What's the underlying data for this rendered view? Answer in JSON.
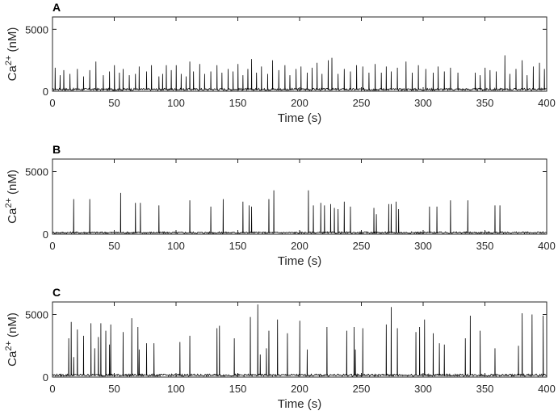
{
  "chart_data": [
    {
      "type": "line",
      "panel_label": "A",
      "xlabel": "Time (s)",
      "ylabel": "Ca2+ (nM)",
      "xlim": [
        0,
        400
      ],
      "ylim": [
        0,
        6000
      ],
      "xticks": [
        0,
        50,
        100,
        150,
        200,
        250,
        300,
        350,
        400
      ],
      "yticks": [
        0,
        5000
      ],
      "grid": false,
      "baseline": 150,
      "series": [
        {
          "color": "#000000",
          "spikes": [
            {
              "t": 2,
              "peak": 1900
            },
            {
              "t": 6,
              "peak": 1300
            },
            {
              "t": 9,
              "peak": 1700
            },
            {
              "t": 14,
              "peak": 1400
            },
            {
              "t": 20,
              "peak": 1800
            },
            {
              "t": 25,
              "peak": 1200
            },
            {
              "t": 30,
              "peak": 1700
            },
            {
              "t": 35,
              "peak": 2400
            },
            {
              "t": 41,
              "peak": 1300
            },
            {
              "t": 46,
              "peak": 1600
            },
            {
              "t": 50,
              "peak": 2100
            },
            {
              "t": 54,
              "peak": 1500
            },
            {
              "t": 57,
              "peak": 1800
            },
            {
              "t": 62,
              "peak": 1300
            },
            {
              "t": 67,
              "peak": 1400
            },
            {
              "t": 70,
              "peak": 2000
            },
            {
              "t": 76,
              "peak": 1600
            },
            {
              "t": 80,
              "peak": 2100
            },
            {
              "t": 86,
              "peak": 1200
            },
            {
              "t": 89,
              "peak": 1400
            },
            {
              "t": 92,
              "peak": 2100
            },
            {
              "t": 96,
              "peak": 1700
            },
            {
              "t": 100,
              "peak": 2100
            },
            {
              "t": 104,
              "peak": 1400
            },
            {
              "t": 108,
              "peak": 1200
            },
            {
              "t": 111,
              "peak": 2400
            },
            {
              "t": 114,
              "peak": 1600
            },
            {
              "t": 119,
              "peak": 2200
            },
            {
              "t": 123,
              "peak": 1400
            },
            {
              "t": 128,
              "peak": 1600
            },
            {
              "t": 133,
              "peak": 2100
            },
            {
              "t": 137,
              "peak": 1500
            },
            {
              "t": 142,
              "peak": 1800
            },
            {
              "t": 146,
              "peak": 1600
            },
            {
              "t": 150,
              "peak": 2200
            },
            {
              "t": 154,
              "peak": 1300
            },
            {
              "t": 158,
              "peak": 1800
            },
            {
              "t": 161,
              "peak": 2600
            },
            {
              "t": 165,
              "peak": 1500
            },
            {
              "t": 169,
              "peak": 2000
            },
            {
              "t": 174,
              "peak": 1400
            },
            {
              "t": 178,
              "peak": 2500
            },
            {
              "t": 183,
              "peak": 1700
            },
            {
              "t": 188,
              "peak": 2100
            },
            {
              "t": 192,
              "peak": 1300
            },
            {
              "t": 197,
              "peak": 1800
            },
            {
              "t": 201,
              "peak": 2000
            },
            {
              "t": 206,
              "peak": 1500
            },
            {
              "t": 210,
              "peak": 1900
            },
            {
              "t": 214,
              "peak": 2300
            },
            {
              "t": 218,
              "peak": 1400
            },
            {
              "t": 223,
              "peak": 2500
            },
            {
              "t": 226,
              "peak": 2700
            },
            {
              "t": 231,
              "peak": 1400
            },
            {
              "t": 236,
              "peak": 1800
            },
            {
              "t": 241,
              "peak": 1600
            },
            {
              "t": 246,
              "peak": 2100
            },
            {
              "t": 251,
              "peak": 2000
            },
            {
              "t": 256,
              "peak": 1500
            },
            {
              "t": 261,
              "peak": 2200
            },
            {
              "t": 266,
              "peak": 1500
            },
            {
              "t": 270,
              "peak": 2000
            },
            {
              "t": 274,
              "peak": 1600
            },
            {
              "t": 279,
              "peak": 1900
            },
            {
              "t": 286,
              "peak": 2400
            },
            {
              "t": 291,
              "peak": 1500
            },
            {
              "t": 296,
              "peak": 2100
            },
            {
              "t": 302,
              "peak": 1800
            },
            {
              "t": 308,
              "peak": 1500
            },
            {
              "t": 312,
              "peak": 2000
            },
            {
              "t": 317,
              "peak": 1600
            },
            {
              "t": 322,
              "peak": 1900
            },
            {
              "t": 328,
              "peak": 1500
            },
            {
              "t": 342,
              "peak": 1500
            },
            {
              "t": 346,
              "peak": 1300
            },
            {
              "t": 350,
              "peak": 1900
            },
            {
              "t": 354,
              "peak": 1700
            },
            {
              "t": 359,
              "peak": 1600
            },
            {
              "t": 366,
              "peak": 2900
            },
            {
              "t": 370,
              "peak": 1400
            },
            {
              "t": 375,
              "peak": 1800
            },
            {
              "t": 380,
              "peak": 2500
            },
            {
              "t": 384,
              "peak": 1300
            },
            {
              "t": 389,
              "peak": 2000
            },
            {
              "t": 394,
              "peak": 2300
            },
            {
              "t": 398,
              "peak": 1800
            }
          ]
        }
      ]
    },
    {
      "type": "line",
      "panel_label": "B",
      "xlabel": "Time (s)",
      "ylabel": "Ca2+ (nM)",
      "xlim": [
        0,
        400
      ],
      "ylim": [
        0,
        6000
      ],
      "xticks": [
        0,
        50,
        100,
        150,
        200,
        250,
        300,
        350,
        400
      ],
      "yticks": [
        0,
        5000
      ],
      "grid": false,
      "baseline": 120,
      "series": [
        {
          "color": "#000000",
          "spikes": [
            {
              "t": 17,
              "peak": 2800
            },
            {
              "t": 30,
              "peak": 2800
            },
            {
              "t": 55,
              "peak": 3300
            },
            {
              "t": 67,
              "peak": 2500
            },
            {
              "t": 71,
              "peak": 2500
            },
            {
              "t": 86,
              "peak": 2300
            },
            {
              "t": 111,
              "peak": 2700
            },
            {
              "t": 128,
              "peak": 2200
            },
            {
              "t": 138,
              "peak": 2800
            },
            {
              "t": 154,
              "peak": 2600
            },
            {
              "t": 159,
              "peak": 2300
            },
            {
              "t": 161,
              "peak": 2200
            },
            {
              "t": 175,
              "peak": 2800
            },
            {
              "t": 179,
              "peak": 3500
            },
            {
              "t": 207,
              "peak": 3500
            },
            {
              "t": 211,
              "peak": 2300
            },
            {
              "t": 217,
              "peak": 2500
            },
            {
              "t": 220,
              "peak": 2300
            },
            {
              "t": 225,
              "peak": 2400
            },
            {
              "t": 228,
              "peak": 2100
            },
            {
              "t": 231,
              "peak": 2000
            },
            {
              "t": 236,
              "peak": 2600
            },
            {
              "t": 241,
              "peak": 2200
            },
            {
              "t": 260,
              "peak": 2100
            },
            {
              "t": 262,
              "peak": 1600
            },
            {
              "t": 272,
              "peak": 2400
            },
            {
              "t": 274,
              "peak": 2400
            },
            {
              "t": 278,
              "peak": 2600
            },
            {
              "t": 280,
              "peak": 2000
            },
            {
              "t": 305,
              "peak": 2200
            },
            {
              "t": 311,
              "peak": 2200
            },
            {
              "t": 322,
              "peak": 2700
            },
            {
              "t": 336,
              "peak": 2700
            },
            {
              "t": 358,
              "peak": 2300
            },
            {
              "t": 362,
              "peak": 2300
            }
          ]
        }
      ]
    },
    {
      "type": "line",
      "panel_label": "C",
      "xlabel": "Time (s)",
      "ylabel": "Ca2+ (nM)",
      "xlim": [
        0,
        400
      ],
      "ylim": [
        0,
        6000
      ],
      "xticks": [
        0,
        50,
        100,
        150,
        200,
        250,
        300,
        350,
        400
      ],
      "yticks": [
        0,
        5000
      ],
      "grid": false,
      "baseline": 150,
      "series": [
        {
          "color": "#000000",
          "spikes": [
            {
              "t": 13,
              "peak": 3100
            },
            {
              "t": 15,
              "peak": 4400
            },
            {
              "t": 17,
              "peak": 1600
            },
            {
              "t": 20,
              "peak": 3800
            },
            {
              "t": 25,
              "peak": 3300
            },
            {
              "t": 31,
              "peak": 4300
            },
            {
              "t": 34,
              "peak": 2300
            },
            {
              "t": 37,
              "peak": 3200
            },
            {
              "t": 39,
              "peak": 4300
            },
            {
              "t": 43,
              "peak": 3700
            },
            {
              "t": 46,
              "peak": 2600
            },
            {
              "t": 47,
              "peak": 4200
            },
            {
              "t": 57,
              "peak": 3600
            },
            {
              "t": 64,
              "peak": 4700
            },
            {
              "t": 69,
              "peak": 4000
            },
            {
              "t": 70,
              "peak": 2200
            },
            {
              "t": 76,
              "peak": 2700
            },
            {
              "t": 82,
              "peak": 2700
            },
            {
              "t": 103,
              "peak": 2800
            },
            {
              "t": 111,
              "peak": 3300
            },
            {
              "t": 133,
              "peak": 3900
            },
            {
              "t": 135,
              "peak": 4100
            },
            {
              "t": 147,
              "peak": 3100
            },
            {
              "t": 160,
              "peak": 4800
            },
            {
              "t": 166,
              "peak": 5800
            },
            {
              "t": 168,
              "peak": 1800
            },
            {
              "t": 173,
              "peak": 2300
            },
            {
              "t": 175,
              "peak": 3700
            },
            {
              "t": 182,
              "peak": 4600
            },
            {
              "t": 190,
              "peak": 3500
            },
            {
              "t": 200,
              "peak": 4500
            },
            {
              "t": 206,
              "peak": 2200
            },
            {
              "t": 222,
              "peak": 4000
            },
            {
              "t": 238,
              "peak": 3700
            },
            {
              "t": 244,
              "peak": 4000
            },
            {
              "t": 245,
              "peak": 2200
            },
            {
              "t": 251,
              "peak": 3900
            },
            {
              "t": 270,
              "peak": 4200
            },
            {
              "t": 274,
              "peak": 5600
            },
            {
              "t": 279,
              "peak": 3900
            },
            {
              "t": 294,
              "peak": 3600
            },
            {
              "t": 297,
              "peak": 4000
            },
            {
              "t": 301,
              "peak": 4600
            },
            {
              "t": 308,
              "peak": 3500
            },
            {
              "t": 313,
              "peak": 2700
            },
            {
              "t": 317,
              "peak": 2600
            },
            {
              "t": 334,
              "peak": 3100
            },
            {
              "t": 338,
              "peak": 4900
            },
            {
              "t": 346,
              "peak": 3700
            },
            {
              "t": 358,
              "peak": 2300
            },
            {
              "t": 377,
              "peak": 2500
            },
            {
              "t": 380,
              "peak": 5100
            },
            {
              "t": 388,
              "peak": 5000
            },
            {
              "t": 397,
              "peak": 4900
            }
          ]
        }
      ]
    }
  ]
}
